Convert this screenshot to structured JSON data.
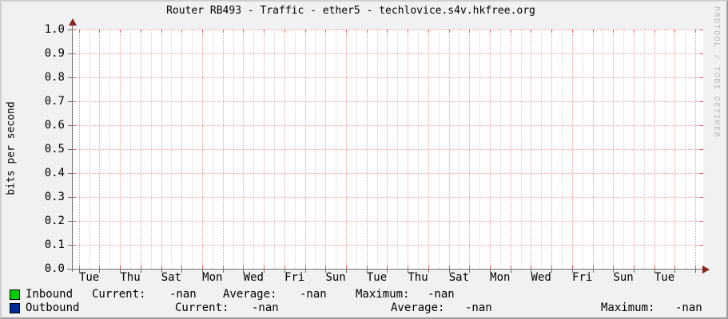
{
  "title": "Router RB493 - Traffic - ether5 - techlovice.s4v.hkfree.org",
  "watermark": "RRDTOOL / TOBI OETIKER",
  "y_axis": {
    "label": "bits per second",
    "ticks": [
      "1.0",
      "0.9",
      "0.8",
      "0.7",
      "0.6",
      "0.5",
      "0.4",
      "0.3",
      "0.2",
      "0.1",
      "0.0"
    ]
  },
  "x_axis": {
    "ticks": [
      "Tue",
      "Thu",
      "Sat",
      "Mon",
      "Wed",
      "Fri",
      "Sun",
      "Tue",
      "Thu",
      "Sat",
      "Mon",
      "Wed",
      "Fri",
      "Sun",
      "Tue"
    ]
  },
  "legend": {
    "rows": [
      {
        "name": "Inbound",
        "color": "#00cf00",
        "current_label": "Current:",
        "current_value": "-nan",
        "average_label": "Average:",
        "average_value": "-nan",
        "maximum_label": "Maximum:",
        "maximum_value": "-nan"
      },
      {
        "name": "Outbound",
        "color": "#002a97",
        "current_label": "Current:",
        "current_value": "-nan",
        "average_label": "Average:",
        "average_value": "-nan",
        "maximum_label": "Maximum:",
        "maximum_value": "-nan"
      }
    ]
  },
  "colors": {
    "inbound": "#00cf00",
    "outbound": "#002a97",
    "major_grid": "#f09c9c",
    "minor_grid": "#cfcfcf",
    "axis": "#6f6f6f",
    "arrow": "#8b2222",
    "figure_background": "#f1f1f1",
    "plot_background": "#ffffff"
  },
  "chart_data": {
    "type": "line",
    "title": "Router RB493 - Traffic - ether5 - techlovice.s4v.hkfree.org",
    "xlabel": "",
    "ylabel": "bits per second",
    "ylim": [
      0.0,
      1.0
    ],
    "y_ticks": [
      0.0,
      0.1,
      0.2,
      0.3,
      0.4,
      0.5,
      0.6,
      0.7,
      0.8,
      0.9,
      1.0
    ],
    "x_tick_labels": [
      "Tue",
      "Thu",
      "Sat",
      "Mon",
      "Wed",
      "Fri",
      "Sun",
      "Tue",
      "Thu",
      "Sat",
      "Mon",
      "Wed",
      "Fri",
      "Sun",
      "Tue"
    ],
    "grid": true,
    "legend_position": "bottom",
    "series": [
      {
        "name": "Inbound",
        "color": "#00cf00",
        "values": [],
        "stats": {
          "current": "-nan",
          "average": "-nan",
          "maximum": "-nan"
        }
      },
      {
        "name": "Outbound",
        "color": "#002a97",
        "values": [],
        "stats": {
          "current": "-nan",
          "average": "-nan",
          "maximum": "-nan"
        }
      }
    ],
    "note_visible_data": "plot area is empty (no data drawn, all statistics are -nan)"
  }
}
